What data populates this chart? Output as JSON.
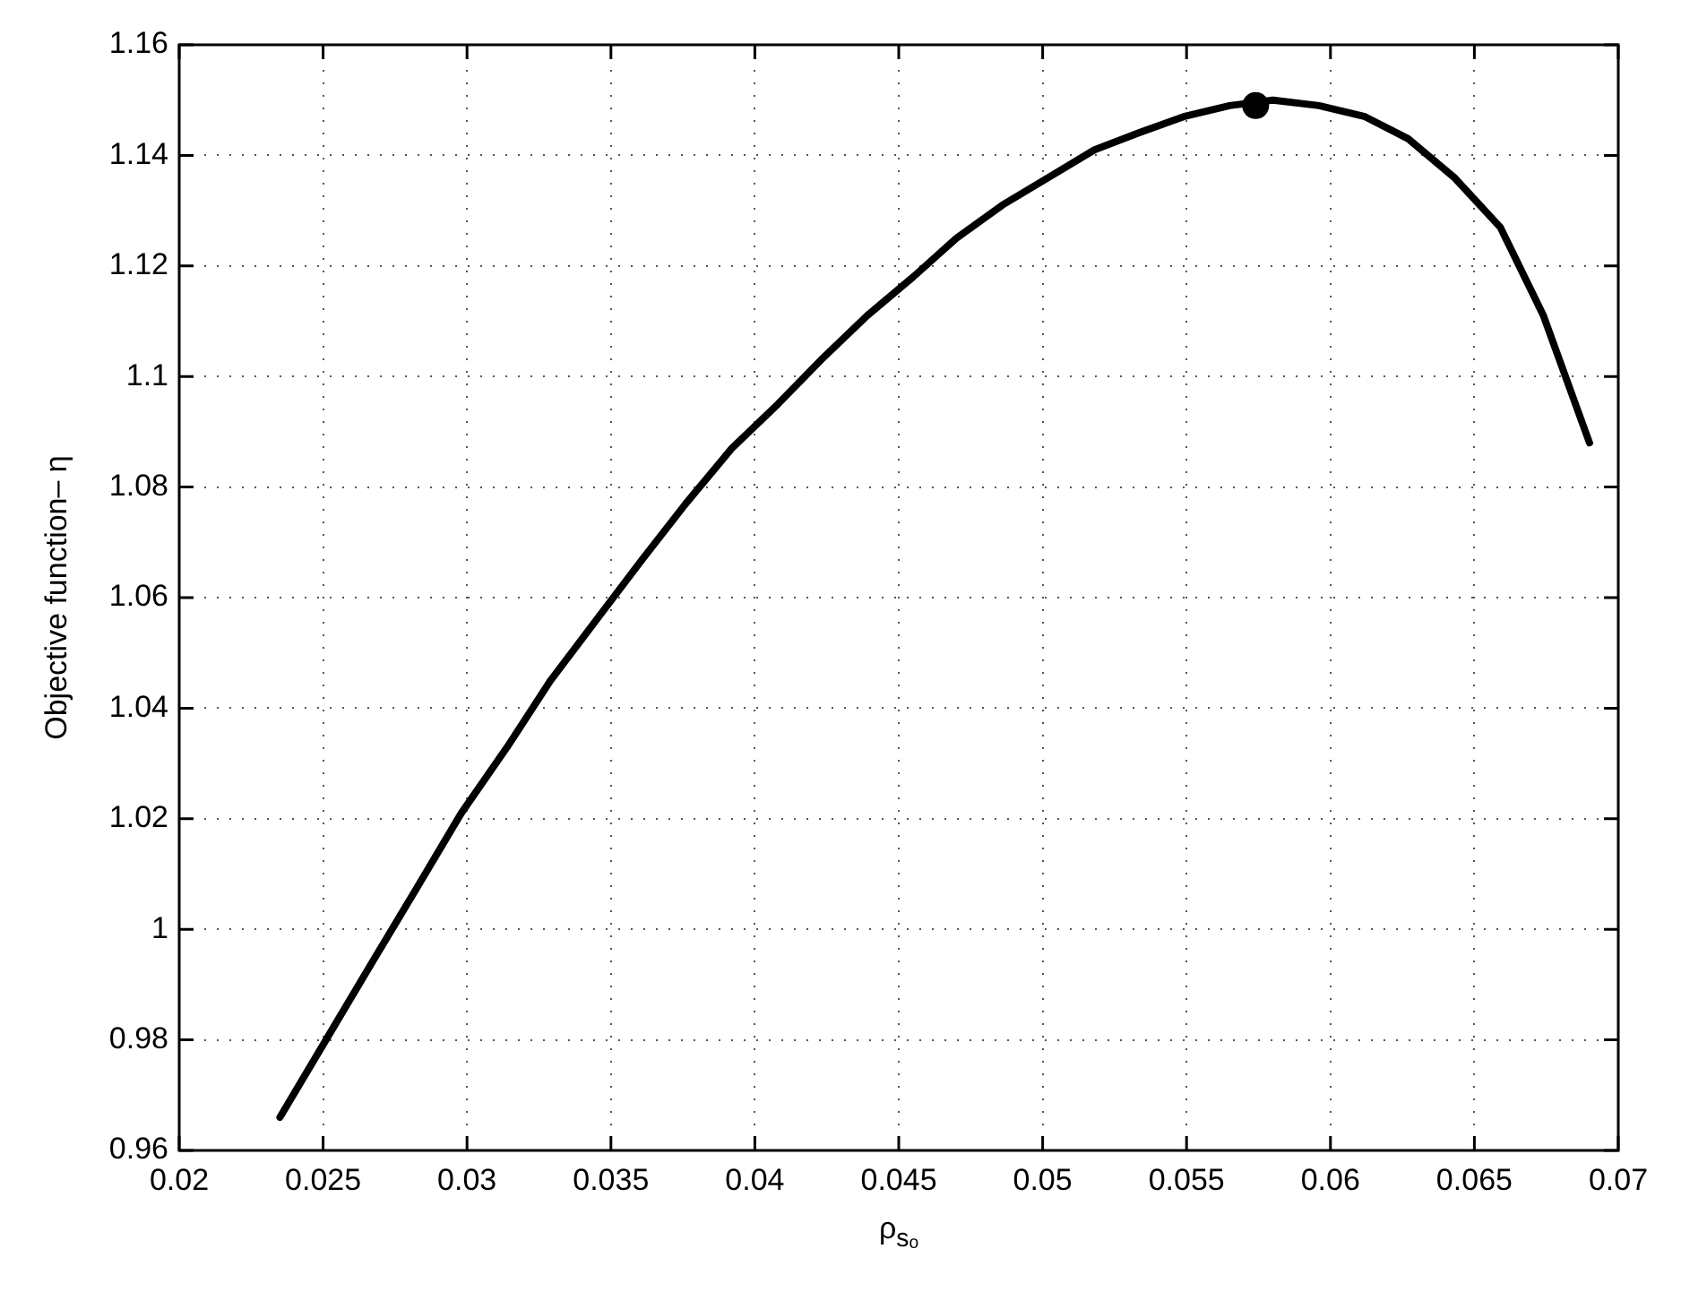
{
  "chart_data": {
    "type": "line",
    "xlabel": "ρ$_{sₒ}$",
    "ylabel": "Objective function– η",
    "x": [
      0.0235,
      0.0251,
      0.0267,
      0.0282,
      0.0298,
      0.0314,
      0.0329,
      0.0345,
      0.0361,
      0.0376,
      0.0392,
      0.0408,
      0.0423,
      0.0439,
      0.0455,
      0.047,
      0.0486,
      0.0502,
      0.0518,
      0.0533,
      0.0549,
      0.0565,
      0.058,
      0.0596,
      0.0612,
      0.0627,
      0.0643,
      0.0659,
      0.0674,
      0.069
    ],
    "series": [
      {
        "color": "#000000",
        "values": [
          0.966,
          0.98,
          0.994,
          1.007,
          1.021,
          1.033,
          1.045,
          1.056,
          1.067,
          1.077,
          1.087,
          1.095,
          1.103,
          1.111,
          1.118,
          1.125,
          1.131,
          1.136,
          1.141,
          1.144,
          1.147,
          1.149,
          1.15,
          1.149,
          1.147,
          1.143,
          1.136,
          1.127,
          1.111,
          1.088
        ]
      },
      {
        "type": "scatter",
        "marker": "circle",
        "color": "#000000",
        "x": [
          0.0574
        ],
        "values": [
          1.149
        ]
      }
    ],
    "xlim": [
      0.02,
      0.07
    ],
    "ylim": [
      0.96,
      1.16
    ],
    "xticks": [
      0.02,
      0.025,
      0.03,
      0.035,
      0.04,
      0.045,
      0.05,
      0.055,
      0.06,
      0.065,
      0.07
    ],
    "yticks": [
      0.96,
      0.98,
      1,
      1.02,
      1.04,
      1.06,
      1.08,
      1.1,
      1.12,
      1.14,
      1.16
    ],
    "grid": true,
    "legend": false,
    "marker": "none",
    "line_style": "solid"
  }
}
